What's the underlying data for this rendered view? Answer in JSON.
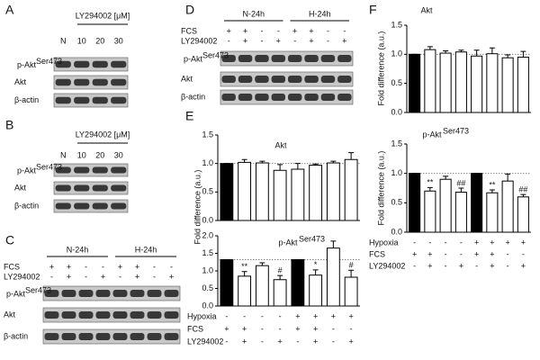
{
  "blots": [
    {
      "label": "A",
      "header": "LY294002 [μM]",
      "lanes": [
        "N",
        "10",
        "20",
        "30"
      ],
      "rows": [
        {
          "name": "p-Akt",
          "sup": "Ser473"
        },
        {
          "name": "Akt"
        },
        {
          "name": "β-actin"
        }
      ]
    },
    {
      "label": "B",
      "header": "LY294002 [μM]",
      "lanes": [
        "N",
        "10",
        "20",
        "30"
      ],
      "rows": [
        {
          "name": "p-Akt",
          "sup": "Ser473"
        },
        {
          "name": "Akt"
        },
        {
          "name": "β-actin"
        }
      ]
    },
    {
      "label": "C",
      "groups": [
        "N-24h",
        "H-24h"
      ],
      "conditions": [
        {
          "label": "FCS",
          "values": [
            "+",
            "+",
            "-",
            "-",
            "+",
            "+",
            "-",
            "-"
          ]
        },
        {
          "label": "LY294002",
          "values": [
            "-",
            "+",
            "-",
            "+",
            "-",
            "+",
            "-",
            "+"
          ]
        }
      ],
      "rows": [
        {
          "name": "p-Akt",
          "sup": "Ser473"
        },
        {
          "name": "Akt"
        },
        {
          "name": "β-actin"
        }
      ]
    },
    {
      "label": "D",
      "groups": [
        "N-24h",
        "H-24h"
      ],
      "conditions": [
        {
          "label": "FCS",
          "values": [
            "+",
            "+",
            "-",
            "-",
            "+",
            "+",
            "-",
            "-"
          ]
        },
        {
          "label": "LY294002",
          "values": [
            "-",
            "+",
            "-",
            "+",
            "-",
            "+",
            "-",
            "+"
          ]
        }
      ],
      "rows": [
        {
          "name": "p-Akt",
          "sup": "Ser473"
        },
        {
          "name": "Akt"
        },
        {
          "name": "β-actin"
        }
      ]
    }
  ],
  "chart_data": [
    {
      "type": "bar",
      "panel": "E",
      "title": "Akt",
      "ylabel": "Fold difference (a.u.)",
      "values": [
        1.0,
        1.02,
        1.01,
        0.88,
        0.9,
        0.97,
        1.01,
        1.07
      ],
      "errors": [
        0,
        0.05,
        0.03,
        0.1,
        0.1,
        0.02,
        0.03,
        0.12
      ],
      "colors": [
        "#000000",
        "#ffffff",
        "#ffffff",
        "#ffffff",
        "#ffffff",
        "#ffffff",
        "#ffffff",
        "#ffffff"
      ],
      "ref_line": 1.0,
      "ylim": [
        0,
        1.5
      ],
      "yticks": [
        {
          "value": 0,
          "label": "0.0"
        },
        0.5,
        {
          "value": 1,
          "label": "1.0"
        },
        1.5
      ]
    },
    {
      "type": "bar",
      "title": "p-Akt",
      "title_superscript": "Ser473",
      "values": [
        1.32,
        0.85,
        1.15,
        0.75,
        1.32,
        0.88,
        1.65,
        0.82
      ],
      "errors": [
        0,
        0.13,
        0.08,
        0.12,
        0,
        0.15,
        0.2,
        0.2
      ],
      "colors": [
        "#000000",
        "#ffffff",
        "#ffffff",
        "#ffffff",
        "#000000",
        "#ffffff",
        "#ffffff",
        "#ffffff"
      ],
      "significance": [
        null,
        "**",
        null,
        "#",
        null,
        "*",
        null,
        "#"
      ],
      "ref_line": 1.32,
      "ylim": [
        0,
        2
      ],
      "yticks": [
        {
          "value": 0,
          "label": "0.0"
        },
        0.5,
        {
          "value": 1,
          "label": "1.0"
        },
        1.5,
        {
          "value": 2,
          "label": "2.0"
        }
      ],
      "conditions": [
        {
          "label": "Hypoxia",
          "values": [
            "-",
            "-",
            "-",
            "-",
            "+",
            "+",
            "+",
            "+"
          ]
        },
        {
          "label": "FCS",
          "values": [
            "+",
            "+",
            "-",
            "-",
            "+",
            "+",
            "-",
            "-"
          ]
        },
        {
          "label": "LY294002",
          "values": [
            "-",
            "+",
            "-",
            "+",
            "-",
            "+",
            "-",
            "+"
          ]
        }
      ]
    },
    {
      "type": "bar",
      "panel": "F",
      "title": "Akt",
      "ylabel": "Fold difference (a.u.)",
      "values": [
        1.0,
        1.08,
        1.02,
        1.04,
        0.97,
        1.01,
        0.94,
        0.95
      ],
      "errors": [
        0,
        0.05,
        0.04,
        0.03,
        0.1,
        0.1,
        0.05,
        0.1
      ],
      "colors": [
        "#000000",
        "#ffffff",
        "#ffffff",
        "#ffffff",
        "#ffffff",
        "#ffffff",
        "#ffffff",
        "#ffffff"
      ],
      "ref_line": 1.0,
      "ylim": [
        0,
        1.5
      ],
      "yticks": [
        {
          "value": 0,
          "label": "0.0"
        },
        0.5,
        {
          "value": 1,
          "label": "1.0"
        },
        1.5
      ]
    },
    {
      "type": "bar",
      "title": "p-Akt",
      "title_superscript": "Ser473",
      "ylabel": "Fold difference (a.u.)",
      "values": [
        1.0,
        0.7,
        0.9,
        0.68,
        1.0,
        0.67,
        0.87,
        0.6
      ],
      "errors": [
        0,
        0.06,
        0.05,
        0.07,
        0,
        0.05,
        0.12,
        0.04
      ],
      "colors": [
        "#000000",
        "#ffffff",
        "#ffffff",
        "#ffffff",
        "#000000",
        "#ffffff",
        "#ffffff",
        "#ffffff"
      ],
      "significance": [
        null,
        "**",
        null,
        "##",
        null,
        "**",
        null,
        "##"
      ],
      "ref_line": 1.0,
      "ylim": [
        0,
        1.5
      ],
      "yticks": [
        {
          "value": 0,
          "label": "0.0"
        },
        0.5,
        {
          "value": 1,
          "label": "1.0"
        },
        1.5
      ],
      "conditions": [
        {
          "label": "Hypoxia",
          "values": [
            "-",
            "-",
            "-",
            "-",
            "+",
            "+",
            "+",
            "+"
          ]
        },
        {
          "label": "FCS",
          "values": [
            "+",
            "+",
            "-",
            "-",
            "+",
            "+",
            "-",
            "-"
          ]
        },
        {
          "label": "LY294002",
          "values": [
            "-",
            "+",
            "-",
            "+",
            "-",
            "+",
            "-",
            "+"
          ]
        }
      ]
    }
  ]
}
